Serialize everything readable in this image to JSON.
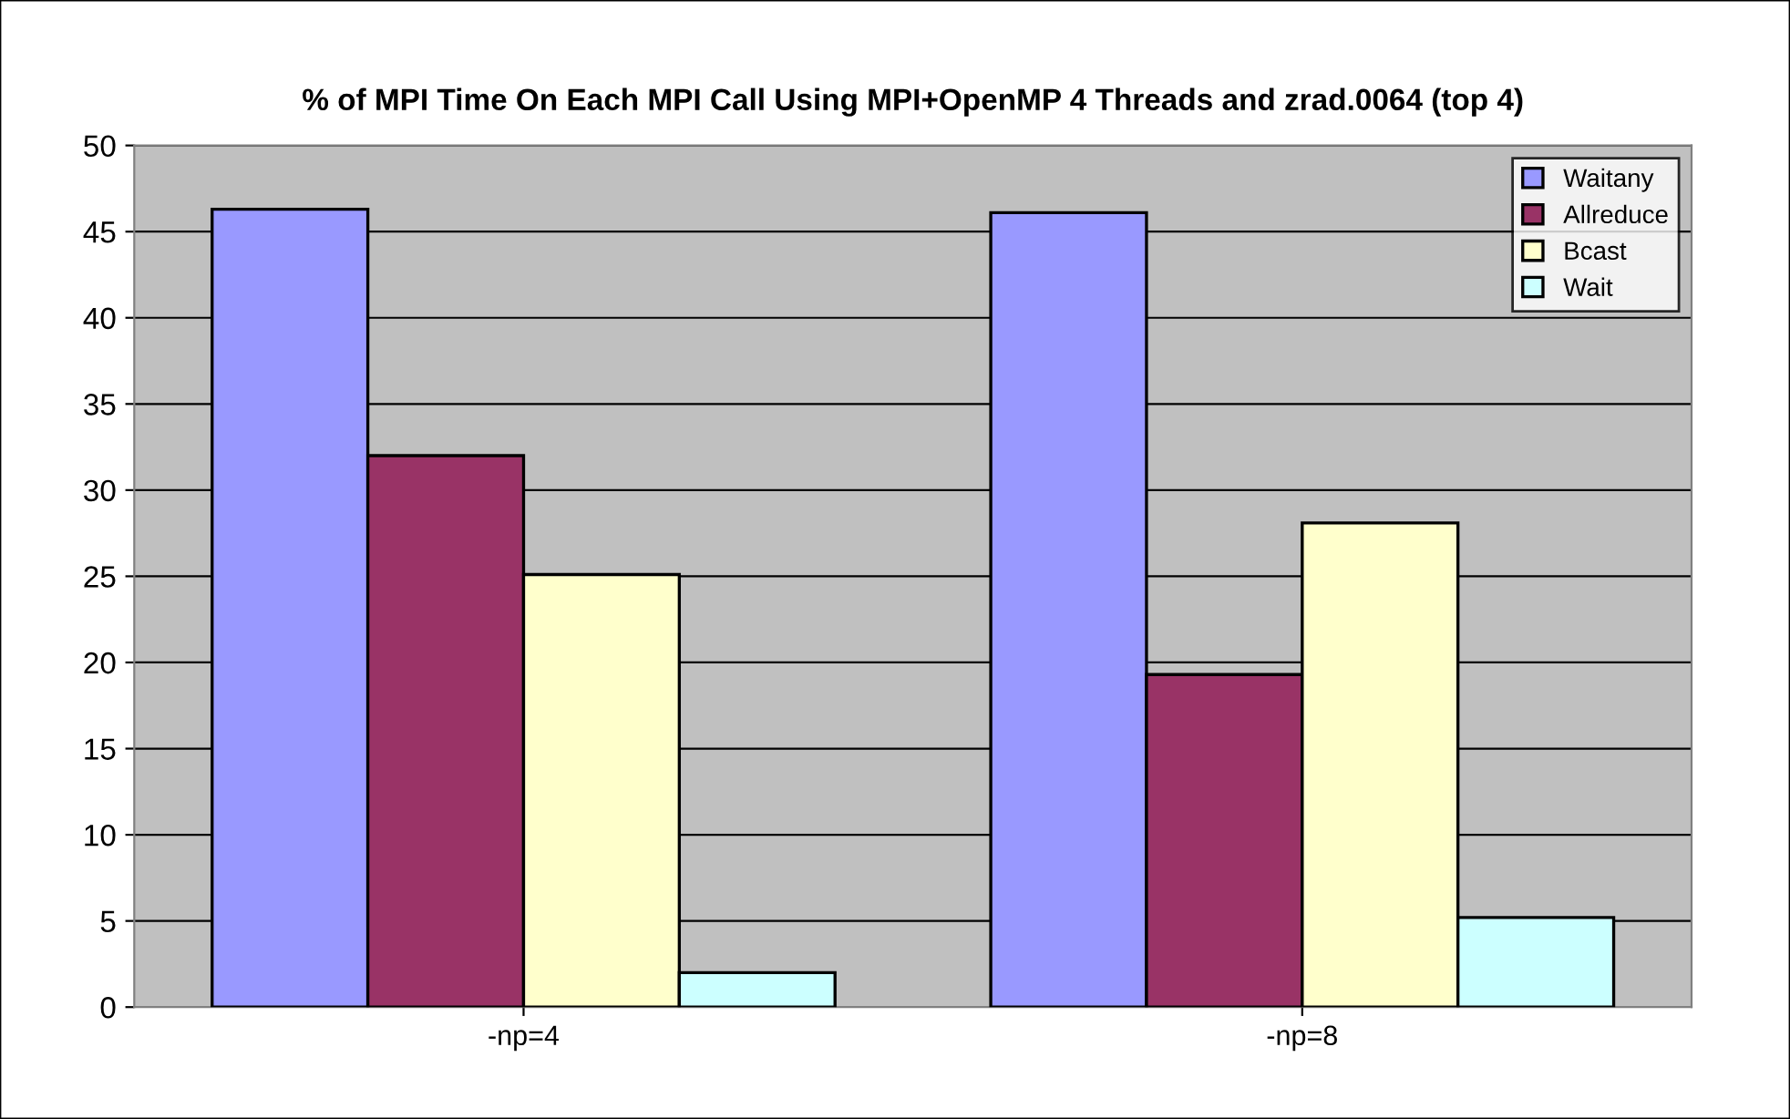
{
  "chart_data": {
    "type": "bar",
    "title": "% of MPI Time On Each MPI Call Using MPI+OpenMP 4 Threads and zrad.0064 (top 4)",
    "categories": [
      "-np=4",
      "-np=8"
    ],
    "series": [
      {
        "name": "Waitany",
        "color": "#9999ff",
        "values": [
          46.3,
          46.1
        ]
      },
      {
        "name": "Allreduce",
        "color": "#993366",
        "values": [
          32.0,
          19.3
        ]
      },
      {
        "name": "Bcast",
        "color": "#ffffcc",
        "values": [
          25.1,
          28.1
        ]
      },
      {
        "name": "Wait",
        "color": "#ccffff",
        "values": [
          2.0,
          5.2
        ]
      }
    ],
    "ylim": [
      0,
      50
    ],
    "yticks": [
      0,
      5,
      10,
      15,
      20,
      25,
      30,
      35,
      40,
      45,
      50
    ],
    "grid": "y",
    "legend": "top right"
  }
}
